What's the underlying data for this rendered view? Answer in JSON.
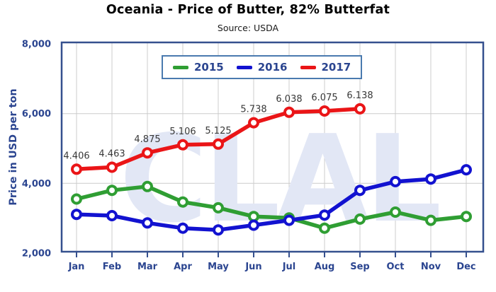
{
  "colors": {
    "axis_text": "#2b4590",
    "grid": "#cccccc",
    "plot_border": "#35508e",
    "legend_border": "#4a7aaf",
    "watermark": "#e2e7f5",
    "point_label_text": "#383838",
    "series_2015": "#2f9e33",
    "series_2016": "#1212d0",
    "series_2017": "#ea1517"
  },
  "chart_data": {
    "type": "line",
    "title": "Oceania - Price of Butter, 82% Butterfat",
    "subtitle": "Source: USDA",
    "ylabel": "Price in USD per ton",
    "xlabel": "",
    "watermark": "CLAL",
    "grid": "on",
    "legend_position": "top-center",
    "ylim": [
      2000,
      8000
    ],
    "y_ticks": [
      {
        "value": 8000,
        "label": "8,000"
      },
      {
        "value": 6000,
        "label": "6,000"
      },
      {
        "value": 4000,
        "label": "4,000"
      },
      {
        "value": 2000,
        "label": "2,000"
      }
    ],
    "categories": [
      "Jan",
      "Feb",
      "Mar",
      "Apr",
      "May",
      "Jun",
      "Jul",
      "Aug",
      "Sep",
      "Oct",
      "Nov",
      "Dec"
    ],
    "series": [
      {
        "name": "2015",
        "color": "#2f9e33",
        "values": [
          3550,
          3800,
          3910,
          3465,
          3300,
          3050,
          3010,
          2715,
          2975,
          3175,
          2940,
          3050
        ]
      },
      {
        "name": "2016",
        "color": "#1212d0",
        "values": [
          3110,
          3075,
          2865,
          2715,
          2665,
          2800,
          2940,
          3090,
          3800,
          4050,
          4125,
          4390
        ]
      },
      {
        "name": "2017",
        "color": "#ea1517",
        "values": [
          4406,
          4463,
          4875,
          5106,
          5125,
          5738,
          6038,
          6075,
          6138
        ],
        "point_labels": [
          "4.406",
          "4.463",
          "4.875",
          "5.106",
          "5.125",
          "5.738",
          "6.038",
          "6.075",
          "6.138"
        ]
      }
    ]
  }
}
